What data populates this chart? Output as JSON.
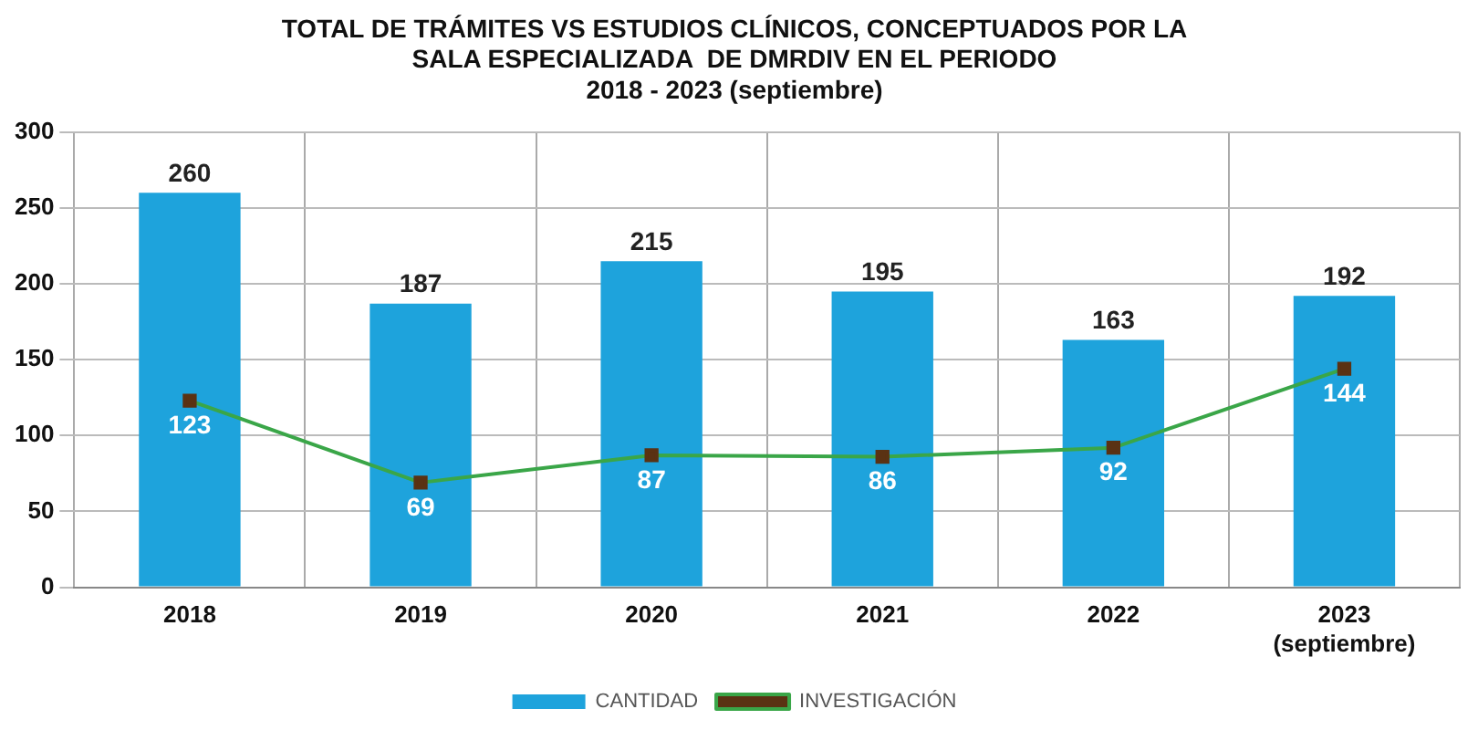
{
  "chart_data": {
    "type": "bar",
    "title": "TOTAL DE TRÁMITES VS ESTUDIOS CLÍNICOS, CONCEPTUADOS POR LA\nSALA ESPECIALIZADA  DE DMRDIV EN EL PERIODO\n2018 - 2023 (septiembre)",
    "categories": [
      "2018",
      "2019",
      "2020",
      "2021",
      "2022",
      "2023\n(septiembre)"
    ],
    "series": [
      {
        "name": "CANTIDAD",
        "color": "#1ea3dc",
        "values": [
          260,
          187,
          215,
          195,
          163,
          192
        ]
      },
      {
        "name": "INVESTIGACIÓN",
        "type": "line",
        "color": "#3aa648",
        "marker": "square",
        "values": [
          123,
          69,
          87,
          86,
          92,
          144
        ]
      }
    ],
    "ylim": [
      0,
      300
    ],
    "yticks": [
      0,
      50,
      100,
      150,
      200,
      250,
      300
    ],
    "grid": true,
    "legend": "bottom",
    "data_labels": true
  }
}
